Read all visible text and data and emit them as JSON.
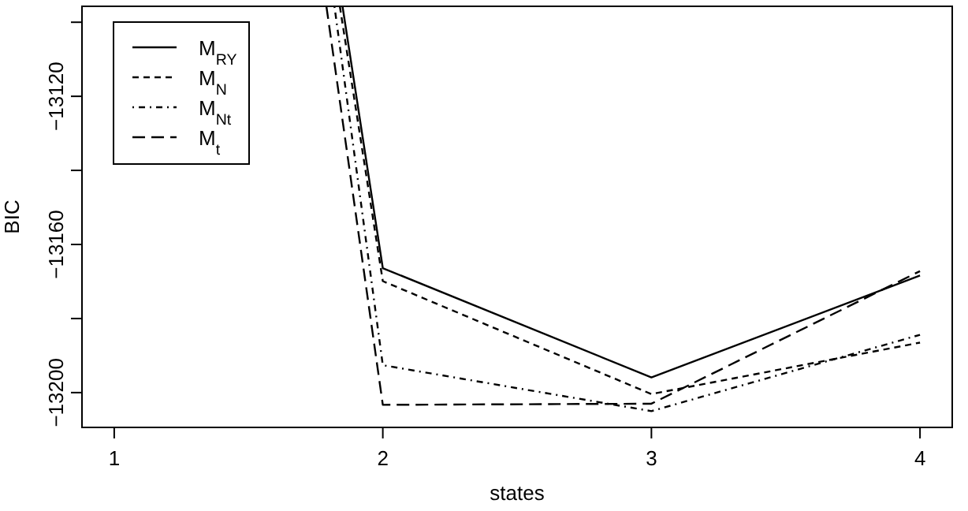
{
  "chart_data": {
    "type": "line",
    "xlabel": "states",
    "ylabel": "BIC",
    "xlim": [
      0.88,
      4.12
    ],
    "ylim": [
      -13209.4,
      -13095.7
    ],
    "xticks": [
      1,
      2,
      3,
      4
    ],
    "yticks": [
      {
        "value": -13100,
        "label": null
      },
      -13120,
      {
        "value": -13140,
        "label": null
      },
      -13160,
      {
        "value": -13180,
        "label": null
      },
      -13200
    ],
    "legend": "top left",
    "grid": false,
    "marker": "none",
    "series": [
      {
        "name": "M$_{RY}$",
        "color": "#000000",
        "line_style": "solid",
        "x": [
          1.85,
          2,
          3,
          4
        ],
        "values": [
          -13095.7,
          -13166.4,
          -13195.9,
          -13168.4
        ]
      },
      {
        "name": "M$_{N}$",
        "color": "#000000",
        "line_style": "dashed",
        "x": [
          1.84,
          2,
          3,
          4
        ],
        "values": [
          -13095.7,
          -13169.9,
          -13200.4,
          -13186.5
        ]
      },
      {
        "name": "M$_{Nt}$",
        "color": "#000000",
        "line_style": "dashdot",
        "x": [
          1.82,
          2,
          3,
          4
        ],
        "values": [
          -13095.7,
          -13192.6,
          -13205,
          -13184.4
        ]
      },
      {
        "name": "M$_{t}$",
        "color": "#000000",
        "line_style": "longdash",
        "x": [
          1.79,
          2,
          3,
          4
        ],
        "values": [
          -13095.7,
          -13203.3,
          -13203,
          -13167.2
        ]
      }
    ]
  }
}
